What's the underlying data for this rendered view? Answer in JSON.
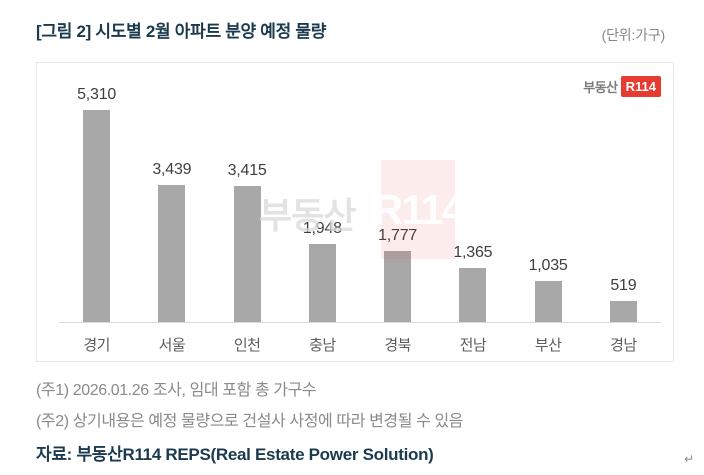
{
  "header": {
    "title": "[그림 2] 시도별 2월 아파트 분양 예정 물량",
    "unit_label": "(단위:가구)"
  },
  "logo": {
    "prefix": "부동산",
    "badge": "R114",
    "badge_color": "#e63b30"
  },
  "watermark": {
    "prefix": "부동산",
    "badge": "R114"
  },
  "chart_data": {
    "type": "bar",
    "title": "[그림 2] 시도별 2월 아파트 분양 예정 물량",
    "unit": "가구",
    "categories": [
      "경기",
      "서울",
      "인천",
      "충남",
      "경북",
      "전남",
      "부산",
      "경남"
    ],
    "values": [
      5310,
      3439,
      3415,
      1948,
      1777,
      1365,
      1035,
      519
    ],
    "value_labels": [
      "5,310",
      "3,439",
      "3,415",
      "1,948",
      "1,777",
      "1,365",
      "1,035",
      "519"
    ],
    "bar_color": "#a8a8a8",
    "xlabel": "",
    "ylabel": "",
    "ylim": [
      0,
      5600
    ],
    "grid": false,
    "legend": false,
    "data_labels": true
  },
  "footer": {
    "note1": "(주1) 2026.01.26 조사, 임대 포함 총 가구수",
    "note2": "(주2) 상기내용은 예정 물량으로 건설사 사정에 따라 변경될 수 있음",
    "source": "자료: 부동산R114 REPS(Real Estate Power Solution)",
    "return_mark": "↵"
  }
}
